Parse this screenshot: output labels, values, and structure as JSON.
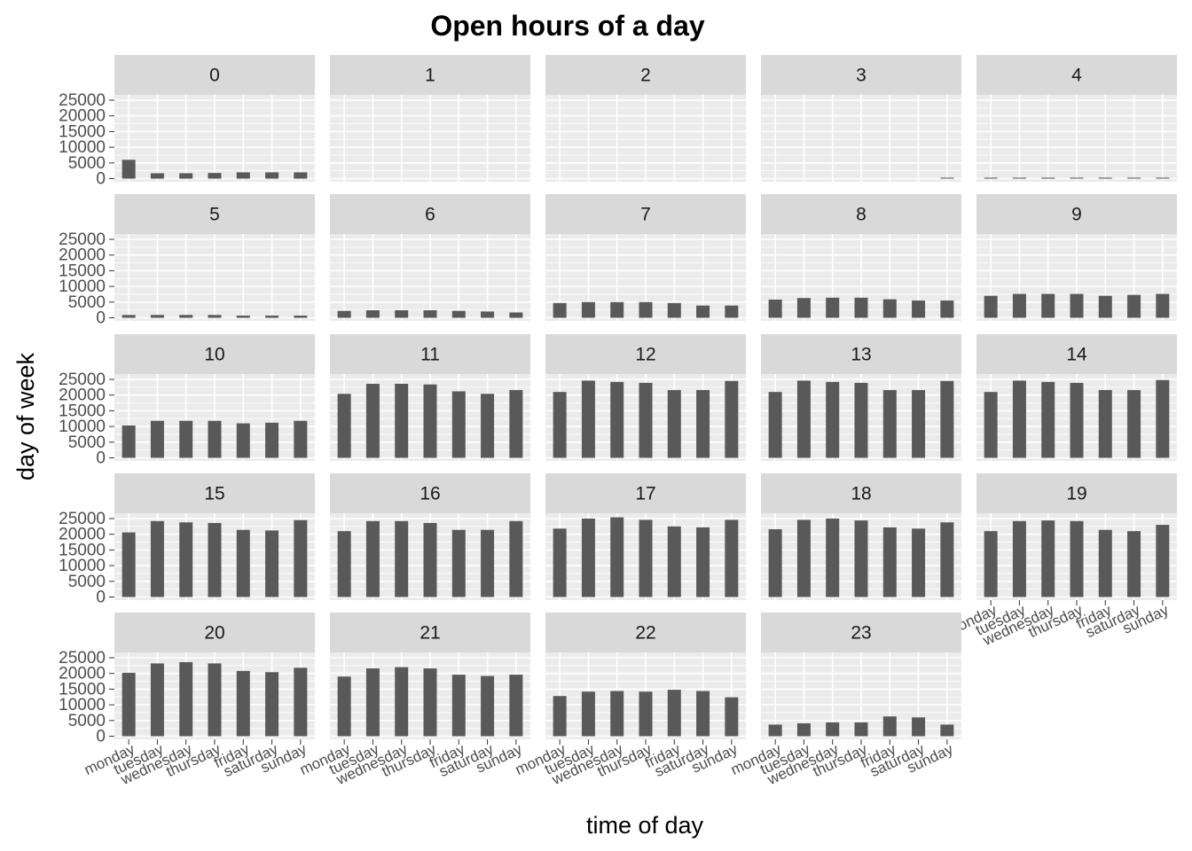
{
  "chart_data": {
    "type": "bar",
    "title": "Open hours of a day",
    "xlabel": "time of day",
    "ylabel": "day of week",
    "categories": [
      "monday",
      "tuesday",
      "wednesday",
      "thursday",
      "friday",
      "saturday",
      "sunday"
    ],
    "y_ticks": [
      0,
      5000,
      10000,
      15000,
      20000,
      25000
    ],
    "ylim": [
      0,
      26000
    ],
    "grid": true,
    "bar_color": "#595959",
    "panel_background": "#ebebeb",
    "strip_background": "#d9d9d9",
    "facets": [
      {
        "label": "0",
        "values": [
          6000,
          1700,
          1700,
          1800,
          2000,
          2000,
          2000
        ]
      },
      {
        "label": "1",
        "values": [
          0,
          0,
          0,
          0,
          0,
          0,
          0
        ]
      },
      {
        "label": "2",
        "values": [
          0,
          0,
          0,
          0,
          0,
          0,
          0
        ]
      },
      {
        "label": "3",
        "values": [
          0,
          0,
          0,
          0,
          0,
          0,
          300
        ]
      },
      {
        "label": "4",
        "values": [
          300,
          300,
          300,
          300,
          300,
          300,
          300
        ]
      },
      {
        "label": "5",
        "values": [
          900,
          900,
          900,
          900,
          700,
          700,
          700
        ]
      },
      {
        "label": "6",
        "values": [
          2200,
          2400,
          2400,
          2400,
          2200,
          2000,
          1700
        ]
      },
      {
        "label": "7",
        "values": [
          4700,
          5000,
          5000,
          5000,
          4700,
          3900,
          3900
        ]
      },
      {
        "label": "8",
        "values": [
          5800,
          6300,
          6400,
          6400,
          5900,
          5500,
          5500
        ]
      },
      {
        "label": "9",
        "values": [
          7000,
          7600,
          7600,
          7600,
          7000,
          7300,
          7600
        ]
      },
      {
        "label": "10",
        "values": [
          10300,
          11800,
          11800,
          11800,
          11000,
          11200,
          11800
        ]
      },
      {
        "label": "11",
        "values": [
          20400,
          23600,
          23600,
          23400,
          21200,
          20400,
          21600
        ]
      },
      {
        "label": "12",
        "values": [
          21000,
          24600,
          24200,
          23900,
          21600,
          21600,
          24500
        ]
      },
      {
        "label": "13",
        "values": [
          21000,
          24600,
          24200,
          23900,
          21600,
          21600,
          24500
        ]
      },
      {
        "label": "14",
        "values": [
          21000,
          24600,
          24200,
          23900,
          21600,
          21600,
          24800
        ]
      },
      {
        "label": "15",
        "values": [
          20600,
          24200,
          23800,
          23600,
          21400,
          21200,
          24500
        ]
      },
      {
        "label": "16",
        "values": [
          21000,
          24200,
          24200,
          23600,
          21400,
          21400,
          24200
        ]
      },
      {
        "label": "17",
        "values": [
          21800,
          25000,
          25400,
          24600,
          22500,
          22200,
          24600
        ]
      },
      {
        "label": "18",
        "values": [
          21600,
          24600,
          25000,
          24400,
          22200,
          21800,
          23800
        ]
      },
      {
        "label": "19",
        "values": [
          21000,
          24200,
          24400,
          24200,
          21400,
          21000,
          23000
        ]
      },
      {
        "label": "20",
        "values": [
          20200,
          23200,
          23600,
          23200,
          20800,
          20400,
          21800
        ]
      },
      {
        "label": "21",
        "values": [
          19000,
          21600,
          22000,
          21600,
          19600,
          19200,
          19600
        ]
      },
      {
        "label": "22",
        "values": [
          12800,
          14200,
          14400,
          14200,
          14800,
          14400,
          12400
        ]
      },
      {
        "label": "23",
        "values": [
          3700,
          4100,
          4400,
          4400,
          6300,
          6000,
          3700
        ]
      }
    ]
  }
}
